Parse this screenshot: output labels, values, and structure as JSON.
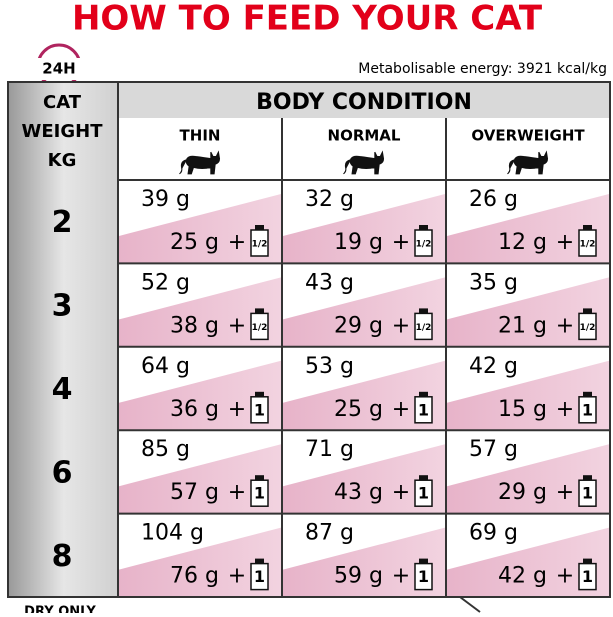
{
  "header": {
    "title": "HOW TO FEED YOUR CAT",
    "badge": "24H",
    "energy": "Metabolisable energy: 3921 kcal/kg"
  },
  "table": {
    "weight_header": [
      "CAT",
      "WEIGHT",
      "KG"
    ],
    "group_header": "BODY CONDITION",
    "columns": [
      "THIN",
      "NORMAL",
      "OVERWEIGHT"
    ],
    "plus": "+",
    "rows": [
      {
        "weight": 2,
        "cells": [
          {
            "dry": "39 g",
            "mixed": "25 g",
            "pouch": "1/2"
          },
          {
            "dry": "32 g",
            "mixed": "19 g",
            "pouch": "1/2"
          },
          {
            "dry": "26 g",
            "mixed": "12 g",
            "pouch": "1/2"
          }
        ]
      },
      {
        "weight": 3,
        "cells": [
          {
            "dry": "52 g",
            "mixed": "38 g",
            "pouch": "1/2"
          },
          {
            "dry": "43 g",
            "mixed": "29 g",
            "pouch": "1/2"
          },
          {
            "dry": "35 g",
            "mixed": "21 g",
            "pouch": "1/2"
          }
        ]
      },
      {
        "weight": 4,
        "cells": [
          {
            "dry": "64 g",
            "mixed": "36 g",
            "pouch": "1"
          },
          {
            "dry": "53 g",
            "mixed": "25 g",
            "pouch": "1"
          },
          {
            "dry": "42 g",
            "mixed": "15 g",
            "pouch": "1"
          }
        ]
      },
      {
        "weight": 6,
        "cells": [
          {
            "dry": "85 g",
            "mixed": "57 g",
            "pouch": "1"
          },
          {
            "dry": "71 g",
            "mixed": "43 g",
            "pouch": "1"
          },
          {
            "dry": "57 g",
            "mixed": "29 g",
            "pouch": "1"
          }
        ]
      },
      {
        "weight": 8,
        "cells": [
          {
            "dry": "104 g",
            "mixed": "76 g",
            "pouch": "1"
          },
          {
            "dry": "87 g",
            "mixed": "59 g",
            "pouch": "1"
          },
          {
            "dry": "69 g",
            "mixed": "42 g",
            "pouch": "1"
          }
        ]
      }
    ]
  },
  "footer": {
    "note": "DRY ONLY"
  }
}
